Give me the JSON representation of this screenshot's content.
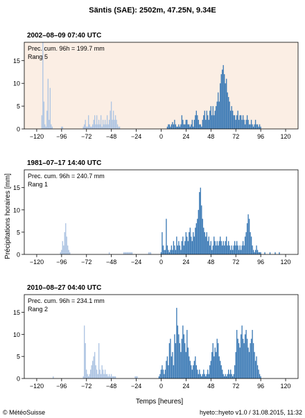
{
  "page_title": "Säntis (SAE): 2502m, 47.25N, 9.34E",
  "ylabel": "Précipitations horaires [mm]",
  "xlabel": "Temps [heures]",
  "footer": {
    "left": "© MétéoSuisse",
    "right": "hyeto::hyeto v1.0 / 31.08.2015, 11:32"
  },
  "colors": {
    "past": "#aec5e3",
    "current": "#3d7bb6",
    "highlight_bg": "#fbeee4",
    "axis": "#000000"
  },
  "chart_data": [
    {
      "type": "bar",
      "title": "2002–08–09 07:40 UTC",
      "annotation": [
        "Prec. cum. 96h = 199.7 mm",
        "Rang 5"
      ],
      "highlighted": true,
      "xlim": [
        -132,
        132
      ],
      "ylim": [
        0,
        19
      ],
      "xticks": [
        -120,
        -96,
        -72,
        -48,
        -24,
        0,
        24,
        48,
        72,
        96,
        120
      ],
      "xtick_labels": [
        "−120",
        "−96",
        "−72",
        "−48",
        "−24",
        "0",
        "24",
        "48",
        "72",
        "96",
        "120"
      ],
      "yticks": [
        0,
        5,
        10,
        15
      ],
      "series": [
        {
          "color_key": "past",
          "x": [
            -115,
            -114,
            -113,
            -112,
            -111,
            -110,
            -109,
            -108,
            -107,
            -106,
            -105,
            -96,
            -95,
            -75,
            -74,
            -73,
            -72,
            -71,
            -70,
            -69,
            -68,
            -67,
            -66,
            -65,
            -64,
            -63,
            -62,
            -61,
            -60,
            -59,
            -58,
            -57,
            -56,
            -55,
            -54,
            -53,
            -52,
            -51,
            -50,
            -49,
            -48,
            -47,
            -46,
            -45,
            -44,
            -43,
            -42,
            -41,
            -40
          ],
          "values": [
            3,
            19,
            6,
            1,
            0.5,
            4,
            11,
            2,
            9,
            1,
            0.5,
            0.5,
            0.5,
            0.5,
            1,
            2,
            0.5,
            0.5,
            3,
            1,
            0.5,
            0.5,
            1,
            2,
            3,
            1,
            3,
            1,
            2,
            1,
            3,
            0.5,
            2,
            1,
            2,
            1,
            3,
            1,
            2,
            4,
            6,
            2,
            4,
            2,
            3,
            2,
            1,
            0.5,
            0.5
          ]
        },
        {
          "color_key": "current",
          "x": [
            6,
            7,
            8,
            9,
            10,
            11,
            12,
            13,
            14,
            15,
            16,
            17,
            18,
            19,
            20,
            21,
            22,
            23,
            24,
            25,
            26,
            27,
            28,
            29,
            30,
            31,
            32,
            33,
            34,
            35,
            36,
            37,
            38,
            39,
            40,
            41,
            42,
            43,
            44,
            45,
            46,
            47,
            48,
            49,
            50,
            51,
            52,
            53,
            54,
            55,
            56,
            57,
            58,
            59,
            60,
            61,
            62,
            63,
            64,
            65,
            66,
            67,
            68,
            69,
            70,
            71,
            72,
            73,
            74,
            75,
            76,
            77,
            78,
            79,
            80,
            81,
            82,
            83,
            84,
            85,
            86,
            87,
            88,
            89,
            90,
            91,
            92,
            93,
            94,
            95,
            96
          ],
          "values": [
            0.5,
            1,
            1,
            0.5,
            1,
            1.5,
            1,
            2,
            1,
            0.5,
            0.5,
            1,
            0.5,
            1,
            3,
            2,
            1,
            1,
            2,
            2,
            1,
            1,
            0.5,
            1,
            2,
            0.5,
            2,
            3,
            4,
            3,
            2,
            1,
            1,
            0.5,
            2,
            3,
            4,
            2,
            4,
            3,
            2,
            4,
            5,
            3,
            5,
            3,
            4,
            5,
            6,
            8,
            6,
            10,
            12,
            13,
            14,
            12,
            10,
            11,
            8,
            7,
            6,
            4,
            5,
            4,
            3,
            3,
            2,
            3,
            4,
            2,
            3,
            3,
            2,
            3,
            2,
            1,
            2,
            3,
            2,
            1,
            1,
            2,
            1,
            0.5,
            1,
            2,
            1,
            1,
            0.5,
            1,
            0.5
          ]
        }
      ]
    },
    {
      "type": "bar",
      "title": "1981–07–17 14:40 UTC",
      "annotation": [
        "Prec. cum. 96h = 240.7 mm",
        "Rang 1"
      ],
      "highlighted": false,
      "xlim": [
        -132,
        132
      ],
      "ylim": [
        0,
        19
      ],
      "xticks": [
        -120,
        -96,
        -72,
        -48,
        -24,
        0,
        24,
        48,
        72,
        96,
        120
      ],
      "xtick_labels": [
        "−120",
        "−96",
        "−72",
        "−48",
        "−24",
        "0",
        "24",
        "48",
        "72",
        "96",
        "120"
      ],
      "yticks": [
        0,
        5,
        10,
        15
      ],
      "series": [
        {
          "color_key": "past",
          "x": [
            -97,
            -96,
            -95,
            -94,
            -93,
            -92,
            -91,
            -90,
            -89,
            -88,
            -50,
            -36,
            -35,
            -34,
            -33,
            -32,
            -31,
            -30,
            -29,
            -28,
            -12,
            -11,
            -10
          ],
          "values": [
            0.5,
            1,
            3,
            2,
            5,
            7,
            4,
            2,
            1,
            0.5,
            0.5,
            0.5,
            0.5,
            0.5,
            0.5,
            0.5,
            0.5,
            0.5,
            0.5,
            0.5,
            0.5,
            0.5,
            0.5
          ]
        },
        {
          "color_key": "current",
          "x": [
            0,
            1,
            2,
            3,
            4,
            5,
            6,
            7,
            8,
            9,
            10,
            11,
            12,
            13,
            14,
            15,
            16,
            17,
            18,
            19,
            20,
            21,
            22,
            23,
            24,
            25,
            26,
            27,
            28,
            29,
            30,
            31,
            32,
            33,
            34,
            35,
            36,
            37,
            38,
            39,
            40,
            41,
            42,
            43,
            44,
            45,
            46,
            47,
            48,
            49,
            50,
            51,
            52,
            53,
            54,
            55,
            56,
            57,
            58,
            59,
            60,
            61,
            62,
            63,
            64,
            65,
            66,
            67,
            68,
            69,
            70,
            71,
            72,
            73,
            74,
            75,
            76,
            77,
            78,
            79,
            80,
            81,
            82,
            83,
            84,
            85,
            86,
            87,
            88,
            89,
            90,
            91,
            92,
            93,
            94,
            95,
            96,
            100,
            105,
            110,
            114
          ],
          "values": [
            0.5,
            5,
            2,
            1,
            1,
            8,
            2,
            1,
            0.5,
            1,
            2,
            1,
            3,
            2,
            1,
            4,
            2,
            3,
            2,
            1,
            3,
            4,
            2,
            3,
            5,
            4,
            3,
            5,
            6,
            4,
            3,
            5,
            4,
            6,
            7,
            8,
            10,
            14,
            15,
            11,
            8,
            6,
            5,
            4,
            5,
            3,
            4,
            2,
            3,
            1,
            2,
            4,
            3,
            2,
            3,
            2,
            3,
            4,
            3,
            2,
            3,
            2,
            3,
            4,
            2,
            3,
            2,
            1,
            2,
            1,
            2,
            3,
            2,
            3,
            2,
            1,
            2,
            1,
            2,
            3,
            2,
            4,
            5,
            7,
            9,
            8,
            5,
            4,
            2,
            1,
            0.5,
            1,
            2,
            1,
            0.5,
            0.5,
            0.5,
            0.5,
            0.5,
            0.5,
            0.5
          ]
        }
      ]
    },
    {
      "type": "bar",
      "title": "2010–08–27 04:40 UTC",
      "annotation": [
        "Prec. cum. 96h = 234.1 mm",
        "Rang 2"
      ],
      "highlighted": false,
      "xlim": [
        -132,
        132
      ],
      "ylim": [
        0,
        19
      ],
      "xticks": [
        -120,
        -96,
        -72,
        -48,
        -24,
        0,
        24,
        48,
        72,
        96,
        120
      ],
      "xtick_labels": [
        "−120",
        "−96",
        "−72",
        "−48",
        "−24",
        "0",
        "24",
        "48",
        "72",
        "96",
        "120"
      ],
      "yticks": [
        0,
        5,
        10,
        15
      ],
      "series": [
        {
          "color_key": "past",
          "x": [
            -104,
            -75,
            -74,
            -73,
            -72,
            -71,
            -70,
            -69,
            -68,
            -67,
            -66,
            -65,
            -64,
            -63,
            -62,
            -61,
            -60,
            -59,
            -58,
            -57,
            -56,
            -55,
            -54,
            -53,
            -52,
            -51,
            -50,
            -49,
            -48,
            -47,
            -46,
            -45,
            -44,
            -25,
            -24,
            -23
          ],
          "values": [
            0.5,
            0.5,
            12,
            8,
            2,
            1,
            0.5,
            1,
            2,
            3,
            4,
            5,
            6,
            3,
            2,
            1,
            8,
            2,
            1,
            3,
            2,
            1,
            2,
            1,
            1,
            0.5,
            1,
            0.5,
            1,
            0.5,
            0.5,
            0.5,
            0.5,
            0.5,
            0.5,
            0.5
          ]
        },
        {
          "color_key": "current",
          "x": [
            -2,
            -1,
            0,
            1,
            2,
            3,
            4,
            5,
            6,
            7,
            8,
            9,
            10,
            11,
            12,
            13,
            14,
            15,
            16,
            17,
            18,
            19,
            20,
            21,
            22,
            23,
            24,
            25,
            26,
            27,
            28,
            29,
            30,
            31,
            32,
            33,
            34,
            35,
            36,
            37,
            38,
            39,
            40,
            41,
            42,
            43,
            44,
            45,
            46,
            47,
            48,
            49,
            50,
            51,
            52,
            53,
            54,
            55,
            56,
            57,
            58,
            59,
            60,
            61,
            62,
            63,
            64,
            65,
            66,
            67,
            68,
            69,
            70,
            71,
            72,
            73,
            74,
            75,
            76,
            77,
            78,
            79,
            80,
            81,
            82,
            83,
            84,
            85,
            86,
            87,
            88,
            89,
            90,
            91,
            92,
            93,
            94,
            95,
            96
          ],
          "values": [
            0.5,
            1,
            2,
            3,
            2,
            1,
            2,
            4,
            5,
            3,
            8,
            9,
            5,
            6,
            3,
            10,
            8,
            16,
            12,
            10,
            8,
            6,
            9,
            12,
            10,
            8,
            6,
            11,
            7,
            5,
            4,
            3,
            2,
            3,
            4,
            5,
            3,
            2,
            1,
            2,
            1,
            0.5,
            1,
            2,
            1,
            0.5,
            1,
            2,
            1,
            3,
            4,
            6,
            8,
            5,
            7,
            6,
            9,
            8,
            5,
            4,
            3,
            2,
            1,
            0.5,
            1,
            0.5,
            1,
            2,
            1,
            2,
            1,
            0.5,
            1,
            3,
            6,
            11,
            9,
            8,
            7,
            10,
            12,
            9,
            8,
            10,
            11,
            9,
            7,
            6,
            8,
            9,
            11,
            8,
            6,
            4,
            5,
            3,
            2,
            1,
            0.5
          ]
        }
      ]
    }
  ]
}
